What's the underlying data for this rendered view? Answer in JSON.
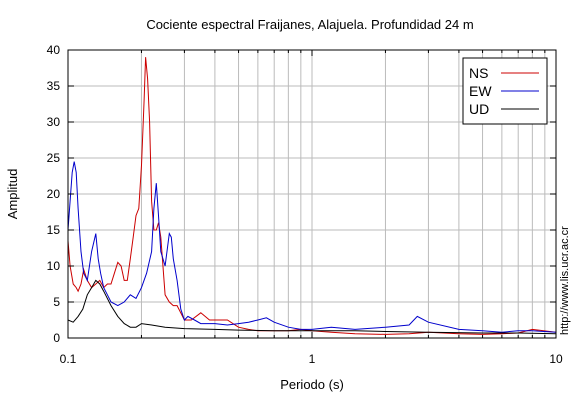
{
  "chart_data": {
    "type": "line",
    "title": "Cociente espectral Fraijanes, Alajuela. Profundidad 24 m",
    "xlabel": "Periodo (s)",
    "ylabel": "Amplitud",
    "x_scale": "log",
    "xlim": [
      0.1,
      10
    ],
    "ylim": [
      0,
      40
    ],
    "x_ticks": [
      {
        "value": 0.1,
        "label": "0.1"
      },
      {
        "value": 1,
        "label": "1"
      },
      {
        "value": 10,
        "label": "10"
      }
    ],
    "y_ticks": [
      0,
      5,
      10,
      15,
      20,
      25,
      30,
      35,
      40
    ],
    "grid": true,
    "legend_position": "top-right",
    "series": [
      {
        "name": "NS",
        "color": "#cc0000",
        "x": [
          0.1,
          0.102,
          0.105,
          0.108,
          0.11,
          0.113,
          0.116,
          0.12,
          0.125,
          0.13,
          0.135,
          0.14,
          0.145,
          0.15,
          0.155,
          0.16,
          0.165,
          0.17,
          0.175,
          0.18,
          0.185,
          0.19,
          0.195,
          0.2,
          0.205,
          0.208,
          0.212,
          0.216,
          0.22,
          0.225,
          0.23,
          0.235,
          0.24,
          0.25,
          0.26,
          0.27,
          0.28,
          0.3,
          0.32,
          0.35,
          0.38,
          0.4,
          0.45,
          0.5,
          0.55,
          0.6,
          0.7,
          0.8,
          0.9,
          1.0,
          1.2,
          1.5,
          2.0,
          2.5,
          3.0,
          4.0,
          5.0,
          6.0,
          7.0,
          8.0,
          10.0
        ],
        "y": [
          13.5,
          10,
          7.5,
          7,
          6.5,
          7.5,
          9.5,
          8,
          7,
          7.5,
          8,
          7,
          7.5,
          7.5,
          9,
          10.5,
          10,
          8,
          8,
          11,
          14,
          17,
          18,
          24,
          33,
          39,
          36,
          30,
          19,
          15,
          15,
          16,
          14,
          6,
          5,
          4.5,
          4.5,
          2.5,
          2.5,
          3.5,
          2.5,
          2.5,
          2.5,
          1.5,
          1.2,
          1,
          1,
          1,
          1.2,
          1,
          0.8,
          0.6,
          0.5,
          0.6,
          0.8,
          0.6,
          0.5,
          0.6,
          0.7,
          1.2,
          0.8
        ]
      },
      {
        "name": "EW",
        "color": "#0000cc",
        "x": [
          0.1,
          0.102,
          0.104,
          0.106,
          0.108,
          0.11,
          0.113,
          0.116,
          0.12,
          0.125,
          0.13,
          0.133,
          0.136,
          0.14,
          0.145,
          0.15,
          0.16,
          0.17,
          0.18,
          0.19,
          0.2,
          0.21,
          0.22,
          0.225,
          0.23,
          0.235,
          0.24,
          0.25,
          0.26,
          0.265,
          0.27,
          0.28,
          0.29,
          0.3,
          0.31,
          0.33,
          0.35,
          0.4,
          0.45,
          0.5,
          0.55,
          0.6,
          0.65,
          0.7,
          0.8,
          0.9,
          1.0,
          1.2,
          1.5,
          2.0,
          2.5,
          2.7,
          3.0,
          4.0,
          5.0,
          6.0,
          7.0,
          8.0,
          10.0
        ],
        "y": [
          15,
          19,
          23,
          24.5,
          23,
          18,
          12,
          9,
          8,
          12,
          14.5,
          11,
          9,
          7,
          6,
          5,
          4.5,
          5,
          6,
          5.5,
          7,
          9,
          12,
          18,
          21.5,
          17,
          12,
          10,
          14.5,
          14,
          11,
          8,
          4,
          2.5,
          3,
          2.5,
          2,
          2,
          1.8,
          2,
          2.2,
          2.5,
          2.8,
          2.2,
          1.5,
          1.2,
          1.2,
          1.5,
          1.2,
          1.5,
          1.8,
          3,
          2.2,
          1.2,
          1,
          0.8,
          1,
          1,
          0.8
        ]
      },
      {
        "name": "UD",
        "color": "#000000",
        "x": [
          0.1,
          0.105,
          0.11,
          0.115,
          0.12,
          0.125,
          0.13,
          0.135,
          0.14,
          0.15,
          0.16,
          0.17,
          0.18,
          0.19,
          0.2,
          0.22,
          0.25,
          0.3,
          0.4,
          0.5,
          0.7,
          1.0,
          1.5,
          2.0,
          3.0,
          5.0,
          7.0,
          10.0
        ],
        "y": [
          2.5,
          2.2,
          3,
          4,
          6,
          7,
          8,
          7.5,
          6.5,
          4.5,
          3,
          2,
          1.5,
          1.5,
          2,
          1.8,
          1.5,
          1.3,
          1.2,
          1.1,
          1,
          1,
          1,
          0.9,
          0.8,
          0.7,
          0.7,
          0.6
        ]
      }
    ],
    "annotation": "http://www.lis.ucr.ac.cr"
  }
}
